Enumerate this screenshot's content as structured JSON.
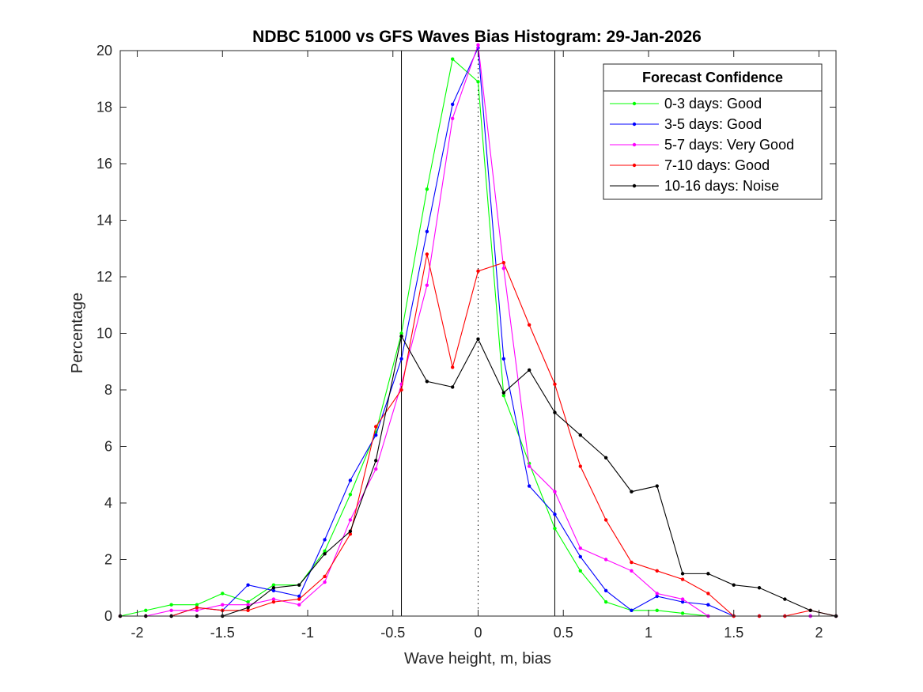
{
  "chart_data": {
    "type": "line",
    "title": "NDBC 51000 vs GFS Waves Bias Histogram: 29-Jan-2026",
    "xlabel": "Wave height, m, bias",
    "ylabel": "Percentage",
    "xlim": [
      -2.1,
      2.1
    ],
    "ylim": [
      0,
      20
    ],
    "xticks": [
      -2,
      -1.5,
      -1,
      -0.5,
      0,
      0.5,
      1,
      1.5,
      2
    ],
    "xtick_labels": [
      "-2",
      "-1.5",
      "-1",
      "-0.5",
      "0",
      "0.5",
      "1",
      "1.5",
      "2"
    ],
    "yticks": [
      0,
      2,
      4,
      6,
      8,
      10,
      12,
      14,
      16,
      18,
      20
    ],
    "ytick_labels": [
      "0",
      "2",
      "4",
      "6",
      "8",
      "10",
      "12",
      "14",
      "16",
      "18",
      "20"
    ],
    "vertical_lines": [
      {
        "x": -0.45,
        "style": "solid",
        "color": "#000000"
      },
      {
        "x": 0,
        "style": "dotted",
        "color": "#000000"
      },
      {
        "x": 0.45,
        "style": "solid",
        "color": "#000000"
      }
    ],
    "x": [
      -2.1,
      -1.95,
      -1.8,
      -1.65,
      -1.5,
      -1.35,
      -1.2,
      -1.05,
      -0.9,
      -0.75,
      -0.6,
      -0.45,
      -0.3,
      -0.15,
      0,
      0.15,
      0.3,
      0.45,
      0.6,
      0.75,
      0.9,
      1.05,
      1.2,
      1.35,
      1.5,
      1.65,
      1.8,
      1.95,
      2.1
    ],
    "legend": {
      "title": "Forecast Confidence",
      "position": "top-right"
    },
    "series": [
      {
        "name": "0-3 days: Good",
        "color": "#00ff00",
        "values": [
          0,
          0.2,
          0.4,
          0.4,
          0.8,
          0.5,
          1.1,
          1.1,
          2.3,
          4.3,
          6.5,
          10.0,
          15.1,
          19.7,
          18.9,
          7.8,
          5.4,
          3.1,
          1.6,
          0.5,
          0.2,
          0.2,
          0.1,
          0,
          0,
          0,
          0,
          0,
          0
        ]
      },
      {
        "name": "3-5 days: Good",
        "color": "#0000ff",
        "values": [
          0,
          0,
          0,
          0.3,
          0.2,
          1.1,
          0.9,
          0.7,
          2.7,
          4.8,
          6.4,
          9.1,
          13.6,
          18.1,
          20.1,
          9.1,
          4.6,
          3.6,
          2.1,
          0.9,
          0.2,
          0.7,
          0.5,
          0.4,
          0,
          0,
          0,
          0,
          0
        ]
      },
      {
        "name": "5-7 days: Very Good",
        "color": "#ff00ff",
        "values": [
          0,
          0,
          0.2,
          0.2,
          0.4,
          0.4,
          0.6,
          0.4,
          1.2,
          3.4,
          5.2,
          8.2,
          11.7,
          17.6,
          20.2,
          12.3,
          5.3,
          4.4,
          2.4,
          2.0,
          1.6,
          0.8,
          0.6,
          0,
          0,
          0,
          0,
          0,
          0
        ]
      },
      {
        "name": "7-10 days: Good",
        "color": "#ff0000",
        "values": [
          0,
          0,
          0,
          0.3,
          0.2,
          0.2,
          0.5,
          0.6,
          1.4,
          2.9,
          6.7,
          8.0,
          12.8,
          8.8,
          12.2,
          12.5,
          10.3,
          8.2,
          5.3,
          3.4,
          1.9,
          1.6,
          1.3,
          0.8,
          0,
          0,
          0,
          0.2,
          0
        ]
      },
      {
        "name": "10-16 days: Noise",
        "color": "#000000",
        "values": [
          0,
          0,
          0,
          0,
          0,
          0.3,
          1.0,
          1.1,
          2.2,
          3.0,
          5.5,
          9.9,
          8.3,
          8.1,
          9.8,
          7.9,
          8.7,
          7.2,
          6.4,
          5.6,
          4.4,
          4.6,
          1.5,
          1.5,
          1.1,
          1.0,
          0.6,
          0.2,
          0
        ]
      }
    ]
  }
}
